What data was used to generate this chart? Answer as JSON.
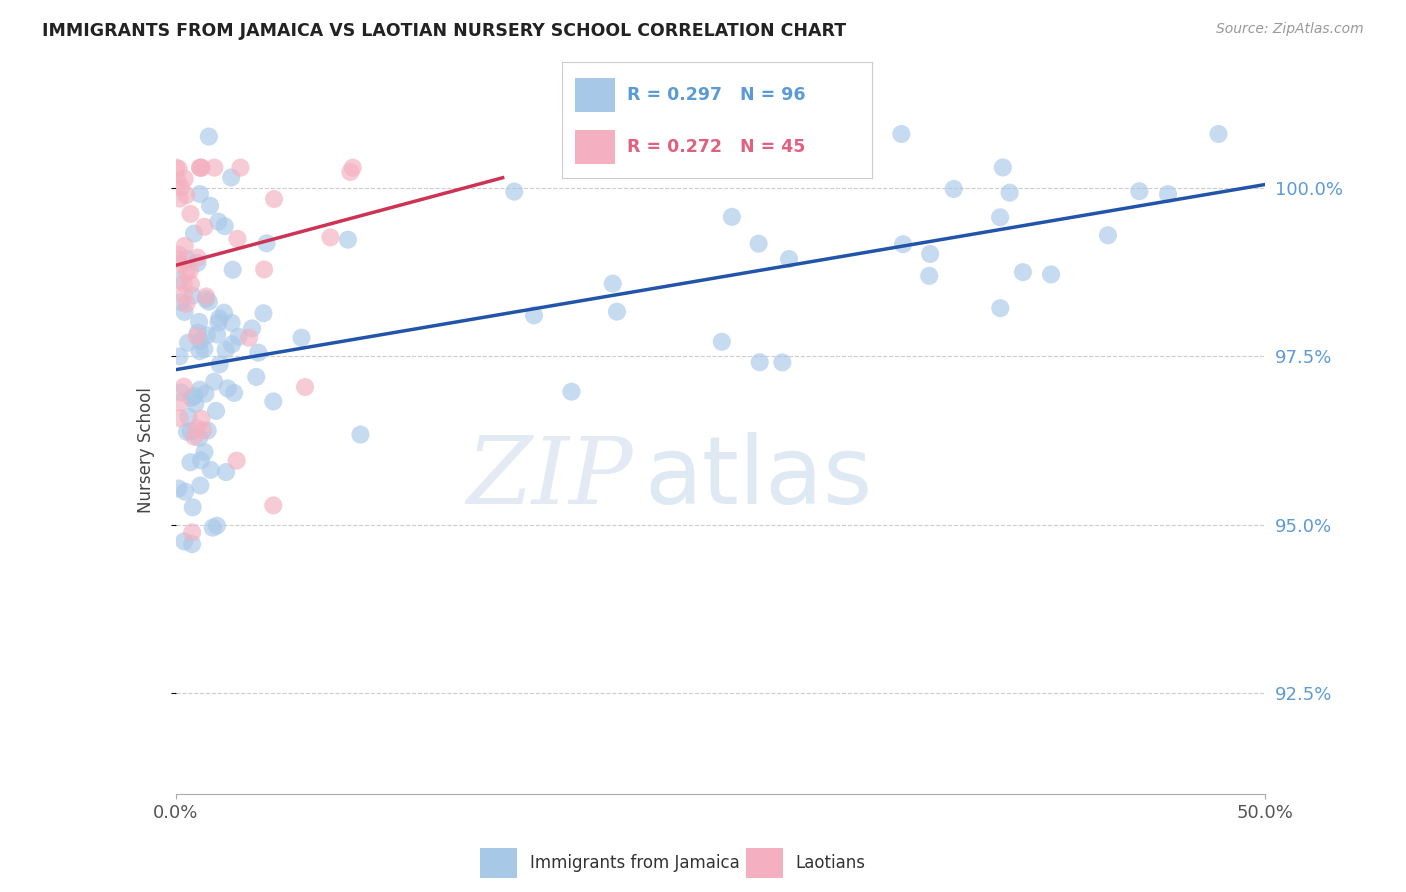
{
  "title": "IMMIGRANTS FROM JAMAICA VS LAOTIAN NURSERY SCHOOL CORRELATION CHART",
  "source": "Source: ZipAtlas.com",
  "ylabel": "Nursery School",
  "x_min": 0.0,
  "x_max": 50.0,
  "y_min": 91.0,
  "y_max": 101.2,
  "y_ticks": [
    92.5,
    95.0,
    97.5,
    100.0
  ],
  "y_tick_labels": [
    "92.5%",
    "95.0%",
    "97.5%",
    "100.0%"
  ],
  "blue_R": 0.297,
  "blue_N": 96,
  "pink_R": 0.272,
  "pink_N": 45,
  "blue_color": "#a8c8e8",
  "pink_color": "#f4b0c0",
  "blue_line_color": "#2255aa",
  "pink_line_color": "#cc3355",
  "legend_blue_label": "Immigrants from Jamaica",
  "legend_pink_label": "Laotians",
  "watermark_zip": "ZIP",
  "watermark_atlas": "atlas",
  "blue_trend_x0": 0,
  "blue_trend_y0": 97.3,
  "blue_trend_x1": 50,
  "blue_trend_y1": 100.05,
  "pink_trend_x0": 0,
  "pink_trend_y0": 98.85,
  "pink_trend_x1": 15,
  "pink_trend_y1": 100.15
}
